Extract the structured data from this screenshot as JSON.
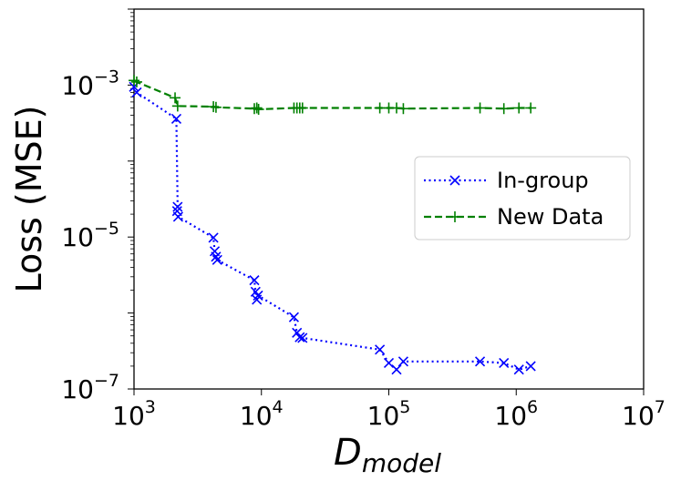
{
  "chart_data": {
    "type": "line",
    "x_scale": "log",
    "y_scale": "log",
    "xlim": [
      1000,
      10000000
    ],
    "ylim": [
      1e-07,
      0.01
    ],
    "xlabel_main": "D",
    "xlabel_sub": "model",
    "ylabel": "Loss (MSE)",
    "x_ticks": [
      {
        "base": "10",
        "exp": "3",
        "value": 1000
      },
      {
        "base": "10",
        "exp": "4",
        "value": 10000
      },
      {
        "base": "10",
        "exp": "5",
        "value": 100000
      },
      {
        "base": "10",
        "exp": "6",
        "value": 1000000
      },
      {
        "base": "10",
        "exp": "7",
        "value": 10000000
      }
    ],
    "y_ticks": [
      {
        "base": "10",
        "exp": "−7",
        "value": 1e-07
      },
      {
        "base": "10",
        "exp": "−5",
        "value": 1e-05
      },
      {
        "base": "10",
        "exp": "−3",
        "value": 0.001
      }
    ],
    "legend_position": "center-right",
    "series": [
      {
        "name": "In-group",
        "color": "#0000ff",
        "linestyle": "dotted",
        "marker": "x",
        "points": [
          [
            1000,
            0.00095
          ],
          [
            1050,
            0.0008
          ],
          [
            2150,
            0.00036
          ],
          [
            2200,
            2.5e-05
          ],
          [
            2180,
            2.2e-05
          ],
          [
            2220,
            1.85e-05
          ],
          [
            4200,
            9.8e-06
          ],
          [
            4300,
            6.5e-06
          ],
          [
            4400,
            5.5e-06
          ],
          [
            4500,
            5e-06
          ],
          [
            8800,
            2.7e-06
          ],
          [
            9000,
            1.9e-06
          ],
          [
            9200,
            1.5e-06
          ],
          [
            9400,
            1.7e-06
          ],
          [
            18000,
            8.8e-07
          ],
          [
            19000,
            5.5e-07
          ],
          [
            20000,
            4.8e-07
          ],
          [
            21000,
            4.7e-07
          ],
          [
            85000,
            3.3e-07
          ],
          [
            100000,
            2.2e-07
          ],
          [
            115000,
            1.8e-07
          ],
          [
            130000,
            2.3e-07
          ],
          [
            520000,
            2.3e-07
          ],
          [
            800000,
            2.2e-07
          ],
          [
            1050000,
            1.8e-07
          ],
          [
            1300000,
            2e-07
          ]
        ]
      },
      {
        "name": "New Data",
        "color": "#008000",
        "linestyle": "dashed",
        "marker": "+",
        "points": [
          [
            1000,
            0.00115
          ],
          [
            1050,
            0.0011
          ],
          [
            2100,
            0.00068
          ],
          [
            2200,
            0.00053
          ],
          [
            4200,
            0.00052
          ],
          [
            4400,
            0.00051
          ],
          [
            8800,
            0.00049
          ],
          [
            9200,
            0.0005
          ],
          [
            9500,
            0.00048
          ],
          [
            18000,
            0.0005
          ],
          [
            19000,
            0.0005
          ],
          [
            20000,
            0.0005
          ],
          [
            21000,
            0.0005
          ],
          [
            85000,
            0.0005
          ],
          [
            100000,
            0.0005
          ],
          [
            115000,
            0.0005
          ],
          [
            130000,
            0.00049
          ],
          [
            520000,
            0.0005
          ],
          [
            800000,
            0.00049
          ],
          [
            1050000,
            0.0005
          ],
          [
            1300000,
            0.0005
          ]
        ]
      }
    ]
  }
}
